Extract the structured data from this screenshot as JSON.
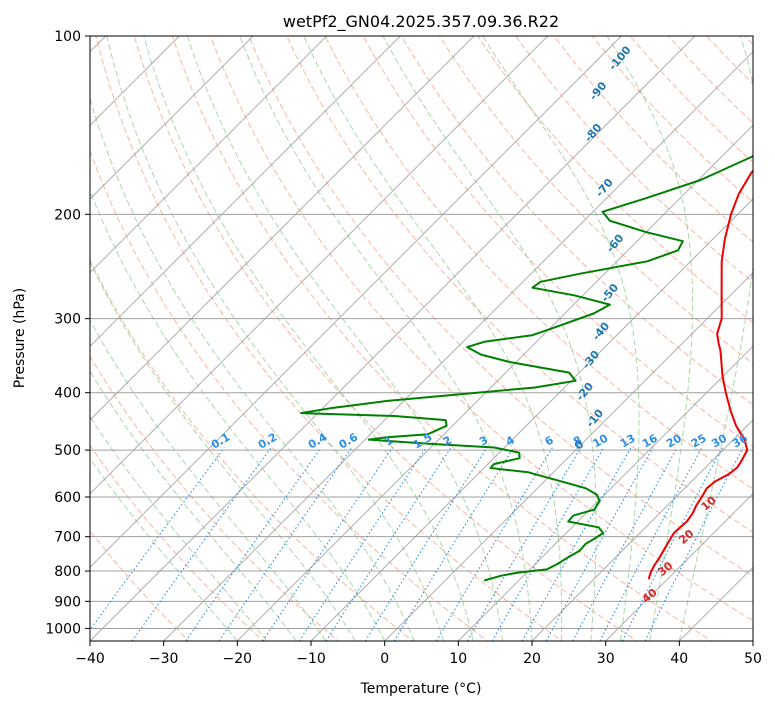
{
  "chart_data": {
    "type": "line",
    "subtype": "skew-T log-P diagram",
    "title": "wetPf2_GN04.2025.357.09.36.R22",
    "xlabel": "Temperature (°C)",
    "ylabel": "Pressure (hPa)",
    "xlim": [
      -40,
      50
    ],
    "ylim": [
      1050,
      100
    ],
    "y_scale": "log",
    "grid": true,
    "x_ticks": [
      -40,
      -30,
      -20,
      -10,
      0,
      10,
      20,
      30,
      40,
      50
    ],
    "x_tick_labels": [
      "−40",
      "−30",
      "−20",
      "−10",
      "0",
      "10",
      "20",
      "30",
      "40",
      "50"
    ],
    "y_ticks": [
      1000,
      900,
      800,
      700,
      600,
      500,
      400,
      300,
      200,
      100
    ],
    "y_tick_labels": [
      "1000",
      "900",
      "800",
      "700",
      "600",
      "500",
      "400",
      "300",
      "200",
      "100"
    ],
    "series": [
      {
        "key": "temperature",
        "color": "#ee0000",
        "points": [
          [
            826,
            27.5
          ],
          [
            818,
            27.2
          ],
          [
            800,
            26.7
          ],
          [
            780,
            26.3
          ],
          [
            760,
            26.0
          ],
          [
            720,
            25.2
          ],
          [
            690,
            24.6
          ],
          [
            660,
            24.8
          ],
          [
            640,
            24.5
          ],
          [
            620,
            23.9
          ],
          [
            600,
            23.5
          ],
          [
            580,
            23.0
          ],
          [
            565,
            23.2
          ],
          [
            548,
            24.1
          ],
          [
            535,
            24.3
          ],
          [
            522,
            24.0
          ],
          [
            500,
            23.3
          ],
          [
            480,
            21.5
          ],
          [
            455,
            18.5
          ],
          [
            430,
            15.8
          ],
          [
            400,
            12.6
          ],
          [
            375,
            9.9
          ],
          [
            350,
            7.3
          ],
          [
            340,
            6.2
          ],
          [
            330,
            4.9
          ],
          [
            318,
            3.4
          ],
          [
            300,
            2.0
          ],
          [
            270,
            -1.7
          ],
          [
            240,
            -5.8
          ],
          [
            220,
            -8.4
          ],
          [
            200,
            -10.9
          ],
          [
            185,
            -12.6
          ],
          [
            170,
            -13.8
          ],
          [
            160,
            -14.0
          ],
          [
            150,
            -15.0
          ],
          [
            140,
            -16.3
          ],
          [
            130,
            -17.5
          ],
          [
            120,
            -18.7
          ],
          [
            112,
            -19.5
          ],
          [
            106,
            -19.8
          ],
          [
            100,
            -20.0
          ]
        ]
      },
      {
        "key": "dewpoint",
        "color": "#008000",
        "points": [
          [
            830,
            5.3
          ],
          [
            815,
            6.9
          ],
          [
            805,
            8.8
          ],
          [
            795,
            12.3
          ],
          [
            778,
            13.0
          ],
          [
            760,
            13.5
          ],
          [
            740,
            14.2
          ],
          [
            720,
            14.1
          ],
          [
            705,
            14.6
          ],
          [
            690,
            15.0
          ],
          [
            675,
            13.6
          ],
          [
            660,
            8.7
          ],
          [
            645,
            8.6
          ],
          [
            630,
            10.6
          ],
          [
            610,
            10.2
          ],
          [
            595,
            9.0
          ],
          [
            580,
            6.6
          ],
          [
            560,
            1.0
          ],
          [
            545,
            -3.4
          ],
          [
            536,
            -9.1
          ],
          [
            528,
            -9.2
          ],
          [
            516,
            -6.5
          ],
          [
            505,
            -7.3
          ],
          [
            495,
            -11.4
          ],
          [
            488,
            -20.5
          ],
          [
            480,
            -29.5
          ],
          [
            476,
            -27.5
          ],
          [
            470,
            -22.2
          ],
          [
            455,
            -20.8
          ],
          [
            445,
            -21.7
          ],
          [
            438,
            -29.2
          ],
          [
            433,
            -42.3
          ],
          [
            425,
            -39.0
          ],
          [
            413,
            -32.2
          ],
          [
            400,
            -21.2
          ],
          [
            392,
            -14.0
          ],
          [
            382,
            -9.4
          ],
          [
            370,
            -11.4
          ],
          [
            355,
            -20.9
          ],
          [
            345,
            -25.8
          ],
          [
            335,
            -28.7
          ],
          [
            328,
            -27.0
          ],
          [
            320,
            -21.5
          ],
          [
            308,
            -19.0
          ],
          [
            294,
            -16.1
          ],
          [
            284,
            -15.1
          ],
          [
            274,
            -21.2
          ],
          [
            266,
            -27.9
          ],
          [
            260,
            -27.6
          ],
          [
            252,
            -23.4
          ],
          [
            240,
            -15.9
          ],
          [
            230,
            -13.2
          ],
          [
            222,
            -13.8
          ],
          [
            214,
            -20.2
          ],
          [
            205,
            -26.5
          ],
          [
            198,
            -28.7
          ],
          [
            188,
            -24.7
          ],
          [
            175,
            -19.7
          ],
          [
            160,
            -15.9
          ],
          [
            150,
            -15.0
          ],
          [
            140,
            -16.4
          ],
          [
            130,
            -17.4
          ],
          [
            120,
            -18.7
          ],
          [
            110,
            -20.8
          ],
          [
            100,
            -21.2
          ]
        ]
      }
    ],
    "dry_adiabat_labels": [
      "10",
      "20",
      "30",
      "40"
    ],
    "moist_adiabat_labels": [
      "-100",
      "-90",
      "-80",
      "-70",
      "-60",
      "-50",
      "-40",
      "-30",
      "-20",
      "-10",
      "0"
    ],
    "mixing_ratio_labels": [
      "0.1",
      "0.2",
      "0.4",
      "0.6",
      "1",
      "1.5",
      "2",
      "3",
      "4",
      "6",
      "8",
      "10",
      "13",
      "16",
      "20",
      "25",
      "30",
      "36"
    ],
    "colors": {
      "temperature": "#ee0000",
      "dewpoint": "#008000",
      "isotherm": "#a0a0a0",
      "isobar": "#a0a0a0",
      "dry_adiabat": "#f4a58a",
      "moist_adiabat": "#8ec98e",
      "mixing_ratio": "#2c8ee6",
      "moist_label": "#1f77b4",
      "dry_label": "#d62728",
      "sat_adiabat_special": "#d9b99b"
    }
  }
}
